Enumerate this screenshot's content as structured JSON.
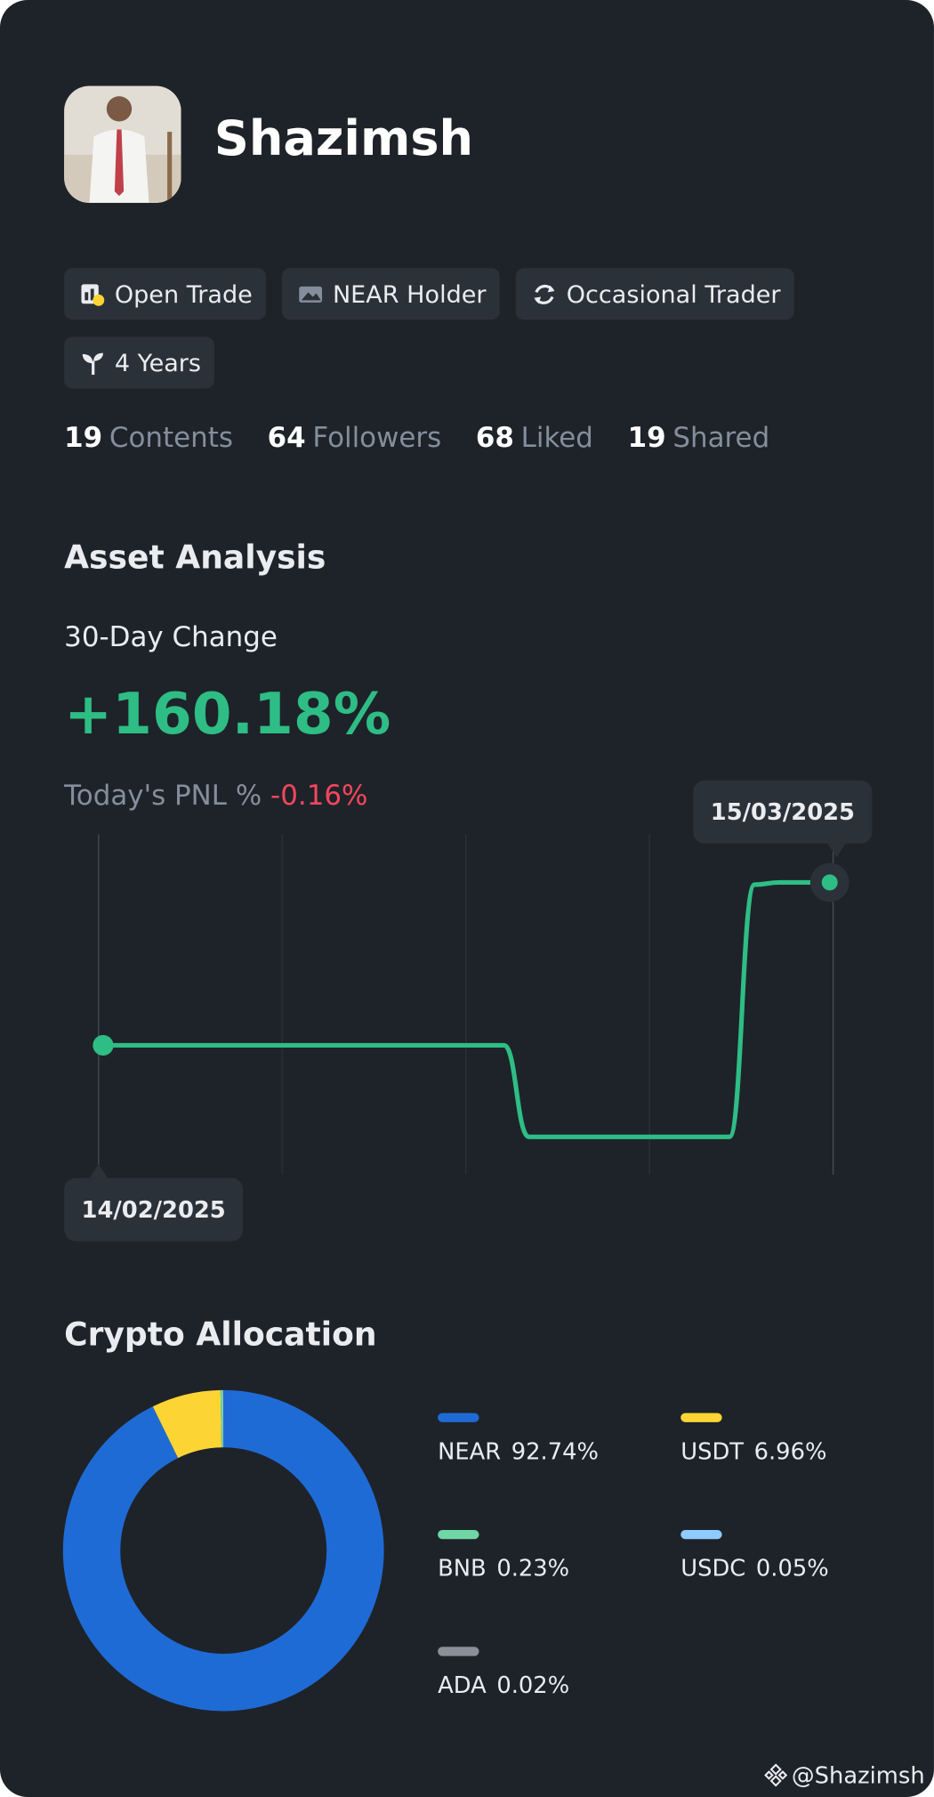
{
  "profile": {
    "name": "Shazimsh"
  },
  "badges": [
    "Open Trade",
    "NEAR Holder",
    "Occasional Trader",
    "4 Years"
  ],
  "stats": [
    {
      "value": 19,
      "label": "Contents"
    },
    {
      "value": 64,
      "label": "Followers"
    },
    {
      "value": 68,
      "label": "Liked"
    },
    {
      "value": 19,
      "label": "Shared"
    }
  ],
  "asset_analysis": {
    "title": "Asset Analysis",
    "change_label": "30-Day Change",
    "change_value": "+160.18%",
    "pnl_label": "Today's PNL %",
    "pnl_value": "-0.16%"
  },
  "allocation_title": "Crypto Allocation",
  "chart_data": [
    {
      "type": "line",
      "color": "#2ebd85",
      "categories": [
        "14/02/2025",
        null,
        null,
        null,
        null,
        null,
        null,
        null,
        null,
        null,
        null,
        null,
        null,
        null,
        null,
        null,
        null,
        null,
        null,
        null,
        null,
        null,
        null,
        null,
        null,
        null,
        null,
        null,
        null,
        "15/03/2025"
      ],
      "values": [
        0,
        0,
        0,
        0,
        0,
        0,
        0,
        0,
        0,
        0,
        0,
        0,
        0,
        0,
        0,
        0,
        0,
        -90,
        -90,
        -90,
        -90,
        -90,
        -90,
        -90,
        -90,
        -90,
        158,
        160.18,
        160.18,
        160.18
      ]
    },
    {
      "type": "pie",
      "donut": true,
      "categories": [
        "NEAR",
        "USDT",
        "BNB",
        "USDC",
        "ADA"
      ],
      "values": [
        92.74,
        6.96,
        0.23,
        0.05,
        0.02
      ],
      "value_labels": [
        "92.74%",
        "6.96%",
        "0.23%",
        "0.05%",
        "0.02%"
      ],
      "colors": [
        "#1f6bd6",
        "#fcd535",
        "#6fd6a6",
        "#8fcbff",
        "#8a8f98"
      ]
    }
  ],
  "watermark": "@Shazimsh"
}
